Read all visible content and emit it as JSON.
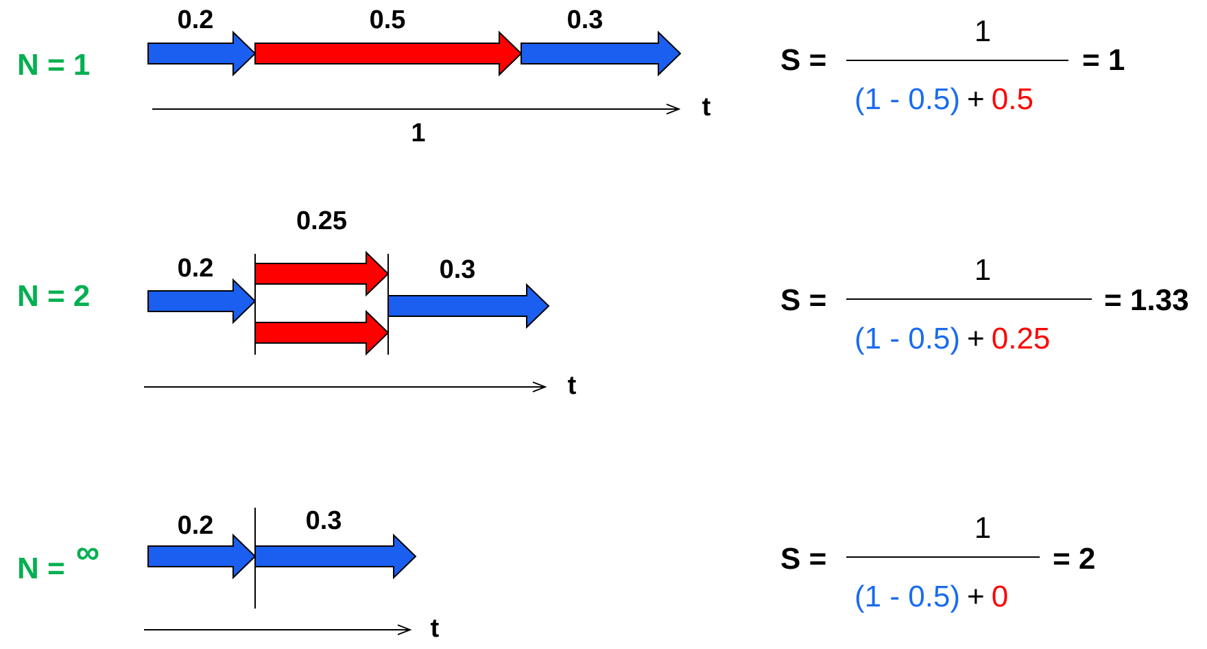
{
  "colors": {
    "blue": "#1a5ff0",
    "red": "#ff0000",
    "green": "#00b050",
    "formula_blue": "#1a6bf0",
    "formula_red": "#ff0000",
    "black": "#000000"
  },
  "rows": [
    {
      "n_label": "N = 1",
      "time_axis_label": "t",
      "total_label": "1",
      "segment_labels": [
        "0.2",
        "0.5",
        "0.3"
      ],
      "formula": {
        "lhs": "S =",
        "numerator": "1",
        "serial_term": "(1 - 0.5)",
        "plus": "+",
        "parallel_term": "0.5",
        "result": "= 1"
      }
    },
    {
      "n_label": "N = 2",
      "time_axis_label": "t",
      "segment_labels": [
        "0.2",
        "0.25",
        "0.3"
      ],
      "formula": {
        "lhs": "S =",
        "numerator": "1",
        "serial_term": "(1 - 0.5)",
        "plus": "+",
        "parallel_term": "0.25",
        "result": "= 1.33"
      }
    },
    {
      "n_label": "N = ",
      "n_symbol": "∞",
      "time_axis_label": "t",
      "segment_labels": [
        "0.2",
        "0.3"
      ],
      "formula": {
        "lhs": "S =",
        "numerator": "1",
        "serial_term": "(1 - 0.5)",
        "plus": "+",
        "parallel_term": "0",
        "result": "= 2"
      }
    }
  ]
}
